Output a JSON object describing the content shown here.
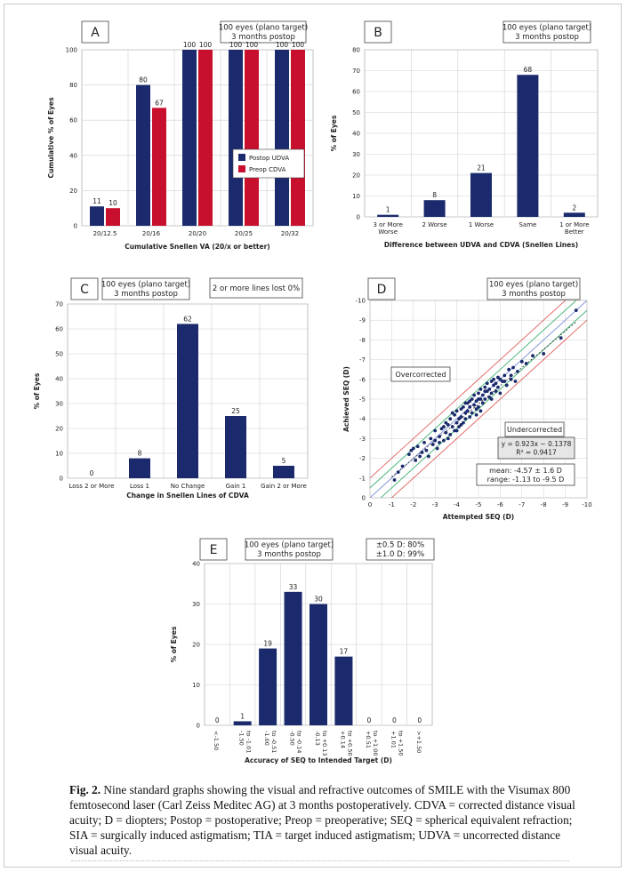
{
  "caption": {
    "label": "Fig. 2.",
    "text": "Nine standard graphs showing the visual and refractive outcomes of SMILE with the Visumax 800 femtosecond laser (Carl Zeiss Meditec AG) at 3 months postoperatively. CDVA = corrected distance visual acuity; D = diopters; Postop = postoperative; Preop = preoperative; SEQ = spherical equivalent refraction; SIA = surgically induced astigmatism; TIA = target induced astigmatism; UDVA = uncorrected distance visual acuity."
  },
  "colors": {
    "navy": "#1a2a6c",
    "red": "#c8102e",
    "grid": "#d0d0d0",
    "line_red": "#e06060",
    "line_green": "#3cb371",
    "line_blue": "#7b8fd6"
  },
  "chart_data": [
    {
      "panel": "A",
      "type": "bar",
      "box": [
        "100 eyes (plano target)",
        "3 months postop"
      ],
      "categories": [
        "20/12.5",
        "20/16",
        "20/20",
        "20/25",
        "20/32"
      ],
      "series": [
        {
          "name": "Postop UDVA",
          "values": [
            11,
            80,
            100,
            100,
            100
          ],
          "color": "#1a2a6c"
        },
        {
          "name": "Preop CDVA",
          "values": [
            10,
            67,
            100,
            100,
            100
          ],
          "color": "#c8102e"
        }
      ],
      "xlabel": "Cumulative Snellen VA (20/x or better)",
      "ylabel": "Cumulative % of Eyes",
      "ylim": [
        0,
        100
      ],
      "yticks": [
        0,
        20,
        40,
        60,
        80,
        100
      ],
      "legend": "center-right"
    },
    {
      "panel": "B",
      "type": "bar",
      "box": [
        "100 eyes (plano target)",
        "3 months postop"
      ],
      "categories": [
        [
          "3 or More",
          "Worse"
        ],
        [
          "2 Worse"
        ],
        [
          "1 Worse"
        ],
        [
          "Same"
        ],
        [
          "1 or More",
          "Better"
        ]
      ],
      "values": [
        1,
        8,
        21,
        68,
        2
      ],
      "xlabel": "Difference between UDVA and CDVA (Snellen Lines)",
      "ylabel": "% of Eyes",
      "ylim": [
        0,
        80
      ],
      "yticks": [
        0,
        10,
        20,
        30,
        40,
        50,
        60,
        70,
        80
      ]
    },
    {
      "panel": "C",
      "type": "bar",
      "box": [
        "100 eyes (plano target)",
        "3 months postop"
      ],
      "box2": "2 or more lines lost 0%",
      "categories": [
        "Loss 2 or More",
        "Loss 1",
        "No Change",
        "Gain 1",
        "Gain 2 or More"
      ],
      "values": [
        0,
        8,
        62,
        25,
        5
      ],
      "xlabel": "Change in Snellen Lines of CDVA",
      "ylabel": "% of Eyes",
      "ylim": [
        0,
        70
      ],
      "yticks": [
        0,
        10,
        20,
        30,
        40,
        50,
        60,
        70
      ]
    },
    {
      "panel": "D",
      "type": "scatter",
      "box": [
        "100 eyes (plano target)",
        "3 months postop"
      ],
      "xlabel": "Attempted SEQ (D)",
      "ylabel": "Achieved SEQ (D)",
      "xlim": [
        0,
        -10
      ],
      "ylim": [
        0,
        -10
      ],
      "xticks": [
        0,
        -1,
        -2,
        -3,
        -4,
        -5,
        -6,
        -7,
        -8,
        -9,
        -10
      ],
      "yticks": [
        0,
        -1,
        -2,
        -3,
        -4,
        -5,
        -6,
        -7,
        -8,
        -9,
        -10
      ],
      "label_over": "Overcorrected",
      "label_under": "Undercorrected",
      "equation": "y = 0.923x − 0.1378",
      "r2": "R² = 0.9417",
      "stats_mean": "mean: -4.57 ± 1.6 D",
      "stats_range": "range: -1.13 to -9.5 D",
      "points": [
        [
          -1.13,
          -0.9
        ],
        [
          -1.3,
          -1.3
        ],
        [
          -1.5,
          -1.6
        ],
        [
          -1.8,
          -2.2
        ],
        [
          -1.9,
          -2.4
        ],
        [
          -2.1,
          -1.9
        ],
        [
          -2.2,
          -2.6
        ],
        [
          -2.3,
          -2.1
        ],
        [
          -2.5,
          -2.8
        ],
        [
          -2.6,
          -2.4
        ],
        [
          -2.7,
          -2.1
        ],
        [
          -2.8,
          -3.0
        ],
        [
          -2.9,
          -2.7
        ],
        [
          -3.0,
          -3.4
        ],
        [
          -3.0,
          -2.9
        ],
        [
          -3.1,
          -2.5
        ],
        [
          -3.2,
          -3.1
        ],
        [
          -3.3,
          -3.5
        ],
        [
          -3.4,
          -2.9
        ],
        [
          -3.5,
          -3.8
        ],
        [
          -3.5,
          -3.3
        ],
        [
          -3.6,
          -3.7
        ],
        [
          -3.7,
          -3.2
        ],
        [
          -3.7,
          -4.0
        ],
        [
          -3.8,
          -3.6
        ],
        [
          -3.9,
          -4.2
        ],
        [
          -3.9,
          -3.4
        ],
        [
          -4.0,
          -3.8
        ],
        [
          -4.0,
          -4.4
        ],
        [
          -4.1,
          -4.0
        ],
        [
          -4.1,
          -3.6
        ],
        [
          -4.2,
          -4.5
        ],
        [
          -4.2,
          -4.1
        ],
        [
          -4.3,
          -3.8
        ],
        [
          -4.3,
          -4.6
        ],
        [
          -4.4,
          -4.3
        ],
        [
          -4.4,
          -4.0
        ],
        [
          -4.5,
          -4.8
        ],
        [
          -4.5,
          -4.4
        ],
        [
          -4.6,
          -4.1
        ],
        [
          -4.6,
          -4.6
        ],
        [
          -4.7,
          -5.0
        ],
        [
          -4.7,
          -4.3
        ],
        [
          -4.8,
          -4.7
        ],
        [
          -4.8,
          -5.2
        ],
        [
          -4.9,
          -4.5
        ],
        [
          -4.9,
          -4.9
        ],
        [
          -5.0,
          -5.3
        ],
        [
          -5.0,
          -4.6
        ],
        [
          -5.1,
          -5.0
        ],
        [
          -5.1,
          -5.5
        ],
        [
          -5.2,
          -4.8
        ],
        [
          -5.2,
          -5.2
        ],
        [
          -5.3,
          -5.6
        ],
        [
          -5.3,
          -5.0
        ],
        [
          -5.4,
          -5.4
        ],
        [
          -5.4,
          -5.8
        ],
        [
          -5.5,
          -5.1
        ],
        [
          -5.5,
          -5.5
        ],
        [
          -5.6,
          -5.9
        ],
        [
          -5.6,
          -5.3
        ],
        [
          -5.7,
          -5.7
        ],
        [
          -5.7,
          -6.0
        ],
        [
          -5.8,
          -5.4
        ],
        [
          -5.8,
          -5.8
        ],
        [
          -5.9,
          -6.1
        ],
        [
          -5.9,
          -5.6
        ],
        [
          -6.0,
          -6.0
        ],
        [
          -6.0,
          -5.3
        ],
        [
          -6.1,
          -5.9
        ],
        [
          -6.2,
          -6.2
        ],
        [
          -6.3,
          -5.7
        ],
        [
          -6.4,
          -6.5
        ],
        [
          -6.5,
          -6.2
        ],
        [
          -6.6,
          -6.6
        ],
        [
          -6.7,
          -5.9
        ],
        [
          -6.8,
          -6.4
        ],
        [
          -7.0,
          -6.9
        ],
        [
          -7.2,
          -6.8
        ],
        [
          -7.5,
          -7.2
        ],
        [
          -8.0,
          -7.3
        ],
        [
          -8.8,
          -8.1
        ],
        [
          -9.5,
          -9.5
        ],
        [
          -3.6,
          -3.0
        ],
        [
          -4.4,
          -4.8
        ],
        [
          -5.0,
          -5.0
        ],
        [
          -3.2,
          -2.8
        ],
        [
          -4.0,
          -3.4
        ],
        [
          -5.6,
          -5.0
        ],
        [
          -6.2,
          -5.9
        ],
        [
          -2.4,
          -2.3
        ],
        [
          -3.4,
          -3.6
        ],
        [
          -4.6,
          -4.9
        ],
        [
          -5.3,
          -5.4
        ],
        [
          -4.9,
          -4.2
        ],
        [
          -3.8,
          -4.3
        ],
        [
          -2.0,
          -2.5
        ],
        [
          -6.5,
          -6.0
        ],
        [
          -5.1,
          -4.4
        ],
        [
          -4.2,
          -3.7
        ]
      ]
    },
    {
      "panel": "E",
      "type": "bar",
      "box": [
        "100 eyes (plano target)",
        "3 months postop"
      ],
      "box2": [
        "±0.5 D: 80%",
        "±1.0 D: 99%"
      ],
      "categories": [
        "<-1.50",
        "-1.50 to -1.01",
        "-1.00 to -0.51",
        "-0.50 to -0.14",
        "-0.13 to +0.13",
        "+0.14 to +0.50",
        "+0.51 to +1.00",
        "+1.01 to +1.50",
        ">+1.50"
      ],
      "values": [
        0,
        1,
        19,
        33,
        30,
        17,
        0,
        0,
        0
      ],
      "xlabel": "Accuracy of SEQ to Intended Target (D)",
      "ylabel": "% of Eyes",
      "ylim": [
        0,
        40
      ],
      "yticks": [
        0,
        10,
        20,
        30,
        40
      ]
    }
  ]
}
